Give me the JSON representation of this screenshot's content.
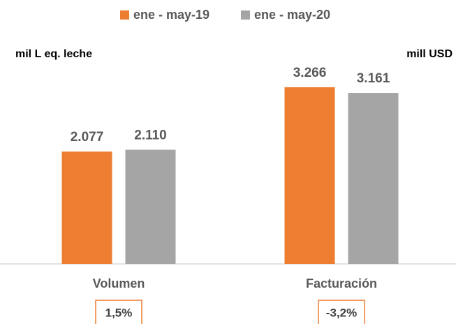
{
  "chart_data": {
    "type": "bar",
    "categories": [
      "Volumen",
      "Facturación"
    ],
    "series": [
      {
        "name": "ene - may-19",
        "color": "#ed7d31",
        "values": [
          2077,
          3266
        ],
        "value_labels": [
          "2.077",
          "3.266"
        ]
      },
      {
        "name": "ene - may-20",
        "color": "#a5a5a5",
        "values": [
          2110,
          3161
        ],
        "value_labels": [
          "2.110",
          "3.161"
        ]
      }
    ],
    "y_label": "mil L eq. leche",
    "y2_label": "mill USD",
    "ylim": [
      0,
      4000
    ],
    "annotations": [
      "1,5%",
      "-3,2%"
    ]
  }
}
